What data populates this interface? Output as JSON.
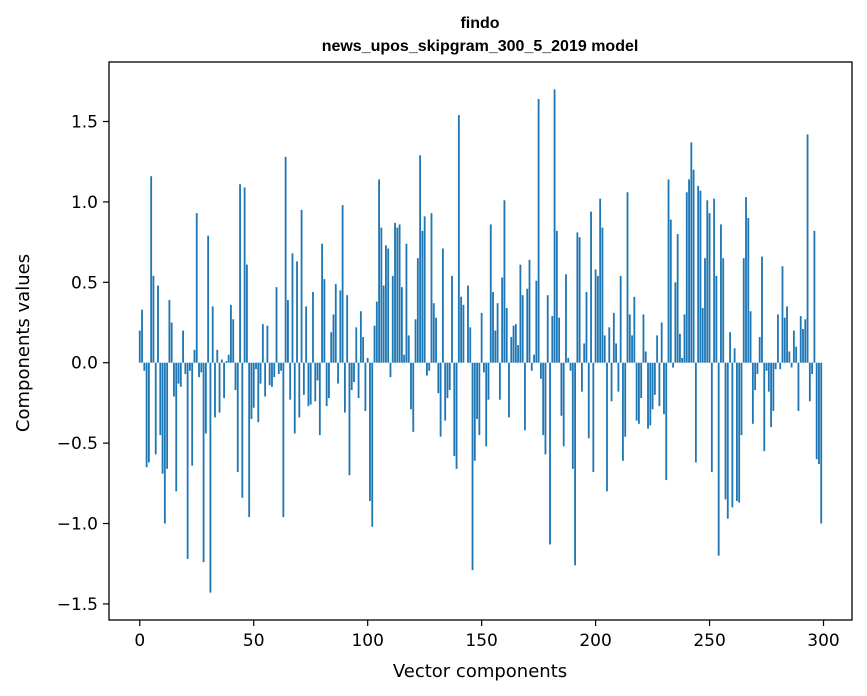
{
  "chart_data": {
    "type": "bar",
    "title": "findo",
    "subtitle": "news_upos_skipgram_300_5_2019 model",
    "xlabel": "Vector components",
    "ylabel": "Components values",
    "xlim": [
      -13.5,
      312.5
    ],
    "ylim": [
      -1.6,
      1.87
    ],
    "xticks": [
      0,
      50,
      100,
      150,
      200,
      250,
      300
    ],
    "yticks": [
      -1.5,
      -1.0,
      -0.5,
      0.0,
      0.5,
      1.0,
      1.5
    ],
    "ytick_labels": [
      "−1.5",
      "−1.0",
      "−0.5",
      "0.0",
      "0.5",
      "1.0",
      "1.5"
    ],
    "bar_color": "#1f77b4",
    "values": [
      0.2,
      0.33,
      -0.05,
      -0.65,
      -0.62,
      1.16,
      0.54,
      -0.57,
      0.48,
      -0.45,
      -0.69,
      -1.0,
      -0.66,
      0.39,
      0.25,
      -0.21,
      -0.8,
      -0.13,
      -0.15,
      0.2,
      -0.07,
      -1.22,
      -0.05,
      -0.64,
      0.08,
      0.93,
      -0.09,
      -0.06,
      -1.24,
      -0.44,
      0.79,
      -1.43,
      0.35,
      -0.34,
      0.08,
      -0.31,
      0.02,
      -0.22,
      0.01,
      0.05,
      0.36,
      0.27,
      -0.17,
      -0.68,
      1.11,
      -0.84,
      1.09,
      0.61,
      -0.96,
      -0.35,
      -0.28,
      -0.04,
      -0.37,
      -0.13,
      0.24,
      -0.21,
      0.23,
      -0.14,
      -0.15,
      -0.09,
      0.47,
      -0.07,
      -0.05,
      -0.96,
      1.28,
      0.39,
      -0.23,
      0.68,
      -0.44,
      0.63,
      -0.34,
      0.95,
      -0.2,
      0.35,
      -0.27,
      -0.26,
      0.44,
      -0.24,
      -0.11,
      -0.45,
      0.74,
      0.52,
      -0.27,
      -0.22,
      0.19,
      0.3,
      0.49,
      -0.13,
      0.45,
      0.98,
      -0.31,
      0.42,
      -0.7,
      -0.17,
      -0.12,
      0.22,
      -0.22,
      0.32,
      0.16,
      -0.3,
      0.03,
      -0.86,
      -1.02,
      0.23,
      0.38,
      1.14,
      0.84,
      0.48,
      0.73,
      0.71,
      -0.09,
      0.54,
      0.87,
      0.84,
      0.86,
      0.47,
      0.05,
      0.74,
      0.17,
      -0.29,
      -0.43,
      0.27,
      0.65,
      1.29,
      0.82,
      0.91,
      -0.08,
      -0.05,
      0.93,
      0.37,
      0.28,
      -0.19,
      -0.46,
      0.71,
      -0.36,
      -0.22,
      -0.17,
      0.54,
      -0.58,
      -0.66,
      1.54,
      0.41,
      0.36,
      0.0,
      0.48,
      0.22,
      -1.29,
      -0.61,
      -0.35,
      -0.45,
      0.31,
      -0.06,
      -0.52,
      -0.23,
      0.86,
      0.44,
      0.2,
      0.37,
      -0.23,
      0.53,
      1.01,
      0.34,
      -0.34,
      0.16,
      0.23,
      0.24,
      0.11,
      0.61,
      0.42,
      -0.42,
      0.46,
      0.64,
      -0.05,
      0.05,
      0.51,
      1.64,
      -0.1,
      -0.45,
      -0.57,
      0.42,
      -1.13,
      0.29,
      1.7,
      0.82,
      0.28,
      -0.33,
      -0.52,
      0.55,
      0.03,
      -0.05,
      -0.66,
      -1.26,
      0.81,
      0.78,
      -0.18,
      0.12,
      0.44,
      -0.47,
      0.94,
      -0.68,
      0.58,
      0.54,
      1.02,
      0.84,
      0.17,
      -0.8,
      0.22,
      -0.24,
      0.31,
      0.12,
      -0.18,
      0.54,
      -0.61,
      -0.46,
      1.06,
      0.3,
      0.17,
      0.41,
      -0.36,
      -0.38,
      -0.22,
      0.3,
      0.07,
      -0.41,
      -0.39,
      -0.29,
      -0.2,
      0.17,
      -0.27,
      0.25,
      -0.32,
      -0.73,
      1.14,
      0.89,
      -0.03,
      0.5,
      0.8,
      0.18,
      0.03,
      0.3,
      1.06,
      1.14,
      1.37,
      1.2,
      -0.62,
      1.1,
      1.07,
      0.34,
      0.65,
      1.01,
      0.93,
      -0.68,
      1.02,
      0.54,
      -1.2,
      0.86,
      0.65,
      -0.85,
      -0.97,
      0.19,
      -0.9,
      0.09,
      -0.86,
      -0.87,
      -0.45,
      0.65,
      1.03,
      0.9,
      0.32,
      -0.38,
      -0.17,
      -0.07,
      0.16,
      0.66,
      -0.55,
      -0.05,
      -0.18,
      -0.4,
      -0.3,
      -0.04,
      0.3,
      -0.04,
      0.6,
      0.28,
      0.35,
      0.07,
      -0.03,
      0.2,
      0.1,
      -0.3,
      0.29,
      0.21,
      0.27,
      1.42,
      -0.24,
      -0.07,
      0.82,
      -0.6,
      -0.63,
      -1.0
    ]
  }
}
